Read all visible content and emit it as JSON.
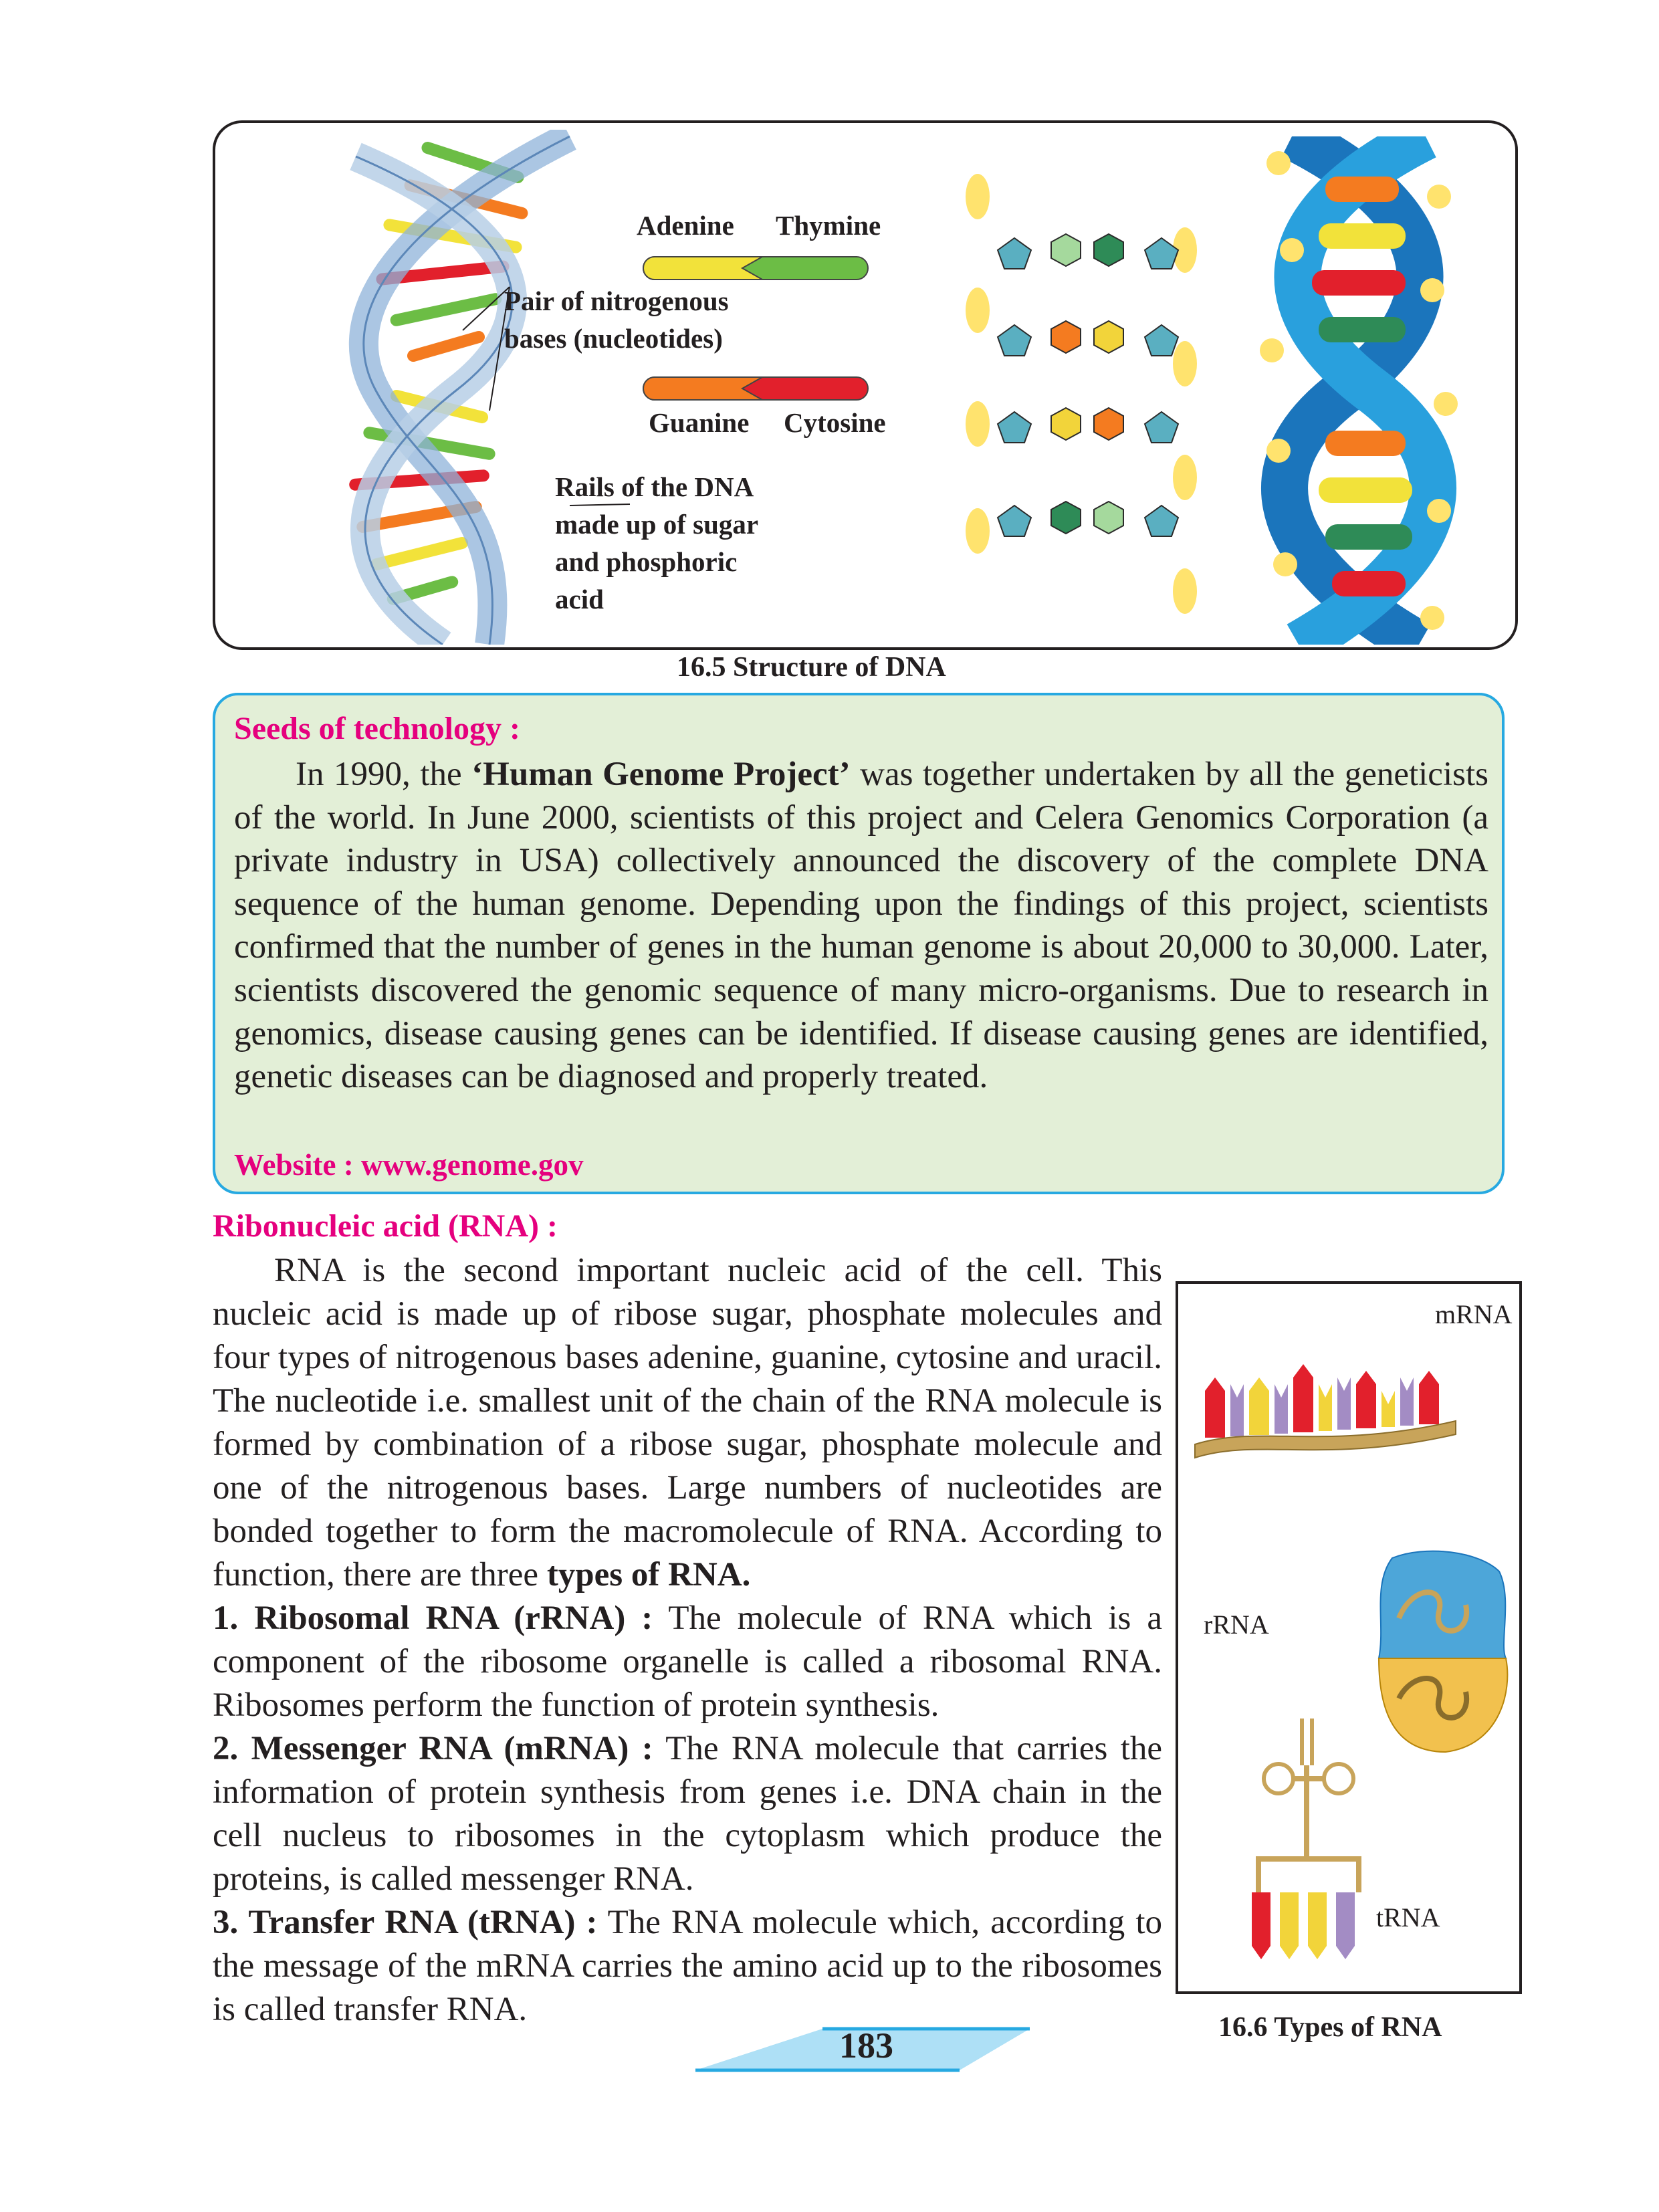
{
  "figure_dna": {
    "labels": {
      "adenine": "Adenine",
      "thymine": "Thymine",
      "pair_line1": "Pair of nitrogenous",
      "pair_line2": "bases (nucleotides)",
      "guanine": "Guanine",
      "cytosine": "Cytosine",
      "rails_line1": "Rails of the DNA",
      "rails_line2": "made up of sugar",
      "rails_line3": "and phosphoric",
      "rails_line4": "acid"
    },
    "caption": "16.5 Structure of DNA",
    "colors": {
      "adenine": "#f2e23a",
      "thymine": "#6cbd45",
      "guanine": "#f47b20",
      "cytosine": "#e2202c",
      "rail": "#b7cfe6",
      "backbone": "#1b75bc",
      "phosphate": "#ffe36e"
    }
  },
  "seeds": {
    "title": "Seeds of technology :",
    "para_start": "In 1990, the ",
    "project_name": "‘Human Genome Project’",
    "para_rest": " was together undertaken by all the geneticists of the world. In June 2000, scientists of this project and Celera Genomics Corporation (a private industry in USA) collectively announced the discovery of the complete DNA sequence of the human genome. Depending upon the findings of this project, scientists confirmed that the number of genes in the human genome is about 20,000 to 30,000. Later, scientists discovered the genomic sequence of many micro-organisms. Due to research in genomics, disease causing genes can be identified. If disease causing genes are identified, genetic diseases can be diagnosed and properly treated.",
    "website": "Website : www.genome.gov"
  },
  "rna": {
    "heading": "Ribonucleic acid (RNA) :",
    "intro": "RNA is the second important nucleic acid of the cell. This nucleic acid is made up of ribose sugar, phosphate molecules and four types of nitrogenous bases adenine, guanine, cytosine and uracil. The nucleotide i.e. smallest unit of the chain of the RNA molecule is formed by combination of a ribose sugar, phosphate molecule and one of the nitrogenous bases. Large numbers of nucleotides are bonded together to form the macromolecule of RNA. According to function, there are three ",
    "intro_bold": "types of RNA.",
    "items": [
      {
        "term": "1. Ribosomal RNA (rRNA) :",
        "desc": " The molecule of RNA which is a component of the ribosome organelle is called a ribosomal RNA. Ribosomes perform the function of protein synthesis."
      },
      {
        "term": "2. Messenger RNA (mRNA) :",
        "desc": " The RNA molecule that carries the information of protein synthesis from genes i.e. DNA chain in the cell nucleus to ribosomes in the cytoplasm which produce the proteins, is called  messenger RNA."
      },
      {
        "term": "3. Transfer RNA (tRNA) :",
        "desc": " The RNA molecule which, according to the message of the mRNA carries the amino acid up to the ribosomes is called transfer RNA."
      }
    ]
  },
  "figure_rna": {
    "labels": {
      "mrna": "mRNA",
      "rrna": "rRNA",
      "trna": "tRNA"
    },
    "caption": "16.6 Types of RNA"
  },
  "page_number": "183"
}
